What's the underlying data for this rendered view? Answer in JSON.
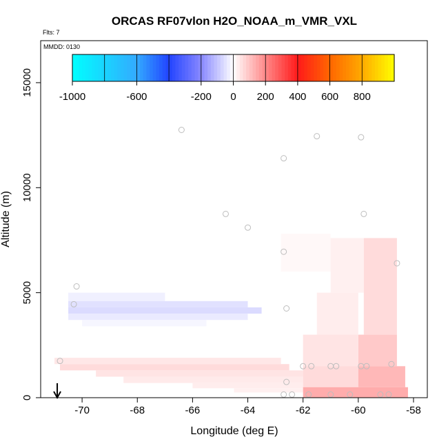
{
  "chart_data": {
    "type": "heatmap",
    "title": "ORCAS RF07vlon H2O_NOAA_m_VMR_VXL",
    "flights_note": "Flts: 7",
    "date_note": "MMDD: 0130",
    "xlabel": "Longitude (deg E)",
    "ylabel": "Altitude (m)",
    "xlim": [
      -71.5,
      -57.5
    ],
    "ylim": [
      0,
      17000
    ],
    "x_ticks": [
      -70,
      -68,
      -66,
      -64,
      -62,
      -60,
      -58
    ],
    "y_ticks": [
      0,
      5000,
      10000,
      15000
    ],
    "colorbar": {
      "range": [
        -1000,
        1000
      ],
      "tick_values": [
        -1000,
        -600,
        -200,
        0,
        200,
        400,
        600,
        800
      ],
      "tick_labels": [
        "-1000",
        "-600",
        "-200",
        "0",
        "200",
        "400",
        "600",
        "800"
      ],
      "stops": [
        {
          "v": -1000,
          "color": "#00ffff"
        },
        {
          "v": -600,
          "color": "#33aaff"
        },
        {
          "v": -400,
          "color": "#2244ff"
        },
        {
          "v": -200,
          "color": "#8888ff"
        },
        {
          "v": 0,
          "color": "#ffffff"
        },
        {
          "v": 200,
          "color": "#ff8888"
        },
        {
          "v": 400,
          "color": "#ff1a1a"
        },
        {
          "v": 600,
          "color": "#ff6600"
        },
        {
          "v": 800,
          "color": "#ffaa00"
        },
        {
          "v": 1000,
          "color": "#ffff00"
        }
      ]
    },
    "cells": [
      {
        "x0": -71.0,
        "x1": -62.8,
        "y0": 1600,
        "y1": 1900,
        "v": 40
      },
      {
        "x0": -70.8,
        "x1": -62.5,
        "y0": 1300,
        "y1": 1600,
        "v": 60
      },
      {
        "x0": -69.5,
        "x1": -62.0,
        "y0": 1000,
        "y1": 1300,
        "v": 45
      },
      {
        "x0": -68.5,
        "x1": -62.0,
        "y0": 700,
        "y1": 1000,
        "v": 35
      },
      {
        "x0": -66.0,
        "x1": -62.0,
        "y0": 450,
        "y1": 700,
        "v": 30
      },
      {
        "x0": -64.5,
        "x1": -62.0,
        "y0": 250,
        "y1": 450,
        "v": 25
      },
      {
        "x0": -70.5,
        "x1": -67.0,
        "y0": 4600,
        "y1": 5000,
        "v": -25
      },
      {
        "x0": -70.5,
        "x1": -64.0,
        "y0": 4300,
        "y1": 4600,
        "v": -50
      },
      {
        "x0": -70.5,
        "x1": -63.5,
        "y0": 4000,
        "y1": 4300,
        "v": -60
      },
      {
        "x0": -70.5,
        "x1": -64.0,
        "y0": 3700,
        "y1": 4000,
        "v": -35
      },
      {
        "x0": -70.0,
        "x1": -65.5,
        "y0": 3400,
        "y1": 3700,
        "v": -15
      },
      {
        "x0": -62.8,
        "x1": -61.0,
        "y0": 6000,
        "y1": 7800,
        "v": 12
      },
      {
        "x0": -61.0,
        "x1": -59.8,
        "y0": 5000,
        "y1": 7600,
        "v": 25
      },
      {
        "x0": -59.8,
        "x1": -58.6,
        "y0": 3000,
        "y1": 7600,
        "v": 60
      },
      {
        "x0": -61.5,
        "x1": -60.0,
        "y0": 3000,
        "y1": 5000,
        "v": 30
      },
      {
        "x0": -60.0,
        "x1": -58.6,
        "y0": 1500,
        "y1": 3000,
        "v": 90
      },
      {
        "x0": -62.0,
        "x1": -60.0,
        "y0": 1500,
        "y1": 3000,
        "v": 45
      },
      {
        "x0": -62.0,
        "x1": -60.0,
        "y0": 500,
        "y1": 1500,
        "v": 60
      },
      {
        "x0": -60.0,
        "x1": -58.3,
        "y0": 500,
        "y1": 1500,
        "v": 120
      },
      {
        "x0": -62.0,
        "x1": -58.2,
        "y0": 0,
        "y1": 500,
        "v": 140
      }
    ],
    "sample_points": [
      {
        "lon": -66.4,
        "alt": 12750
      },
      {
        "lon": -61.5,
        "alt": 12450
      },
      {
        "lon": -59.9,
        "alt": 12400
      },
      {
        "lon": -62.7,
        "alt": 11400
      },
      {
        "lon": -64.8,
        "alt": 8750
      },
      {
        "lon": -59.8,
        "alt": 8750
      },
      {
        "lon": -64.0,
        "alt": 8100
      },
      {
        "lon": -62.7,
        "alt": 6950
      },
      {
        "lon": -58.6,
        "alt": 6400
      },
      {
        "lon": -70.2,
        "alt": 5300
      },
      {
        "lon": -70.3,
        "alt": 4450
      },
      {
        "lon": -62.6,
        "alt": 4250
      },
      {
        "lon": -70.8,
        "alt": 1750
      },
      {
        "lon": -62.0,
        "alt": 1500
      },
      {
        "lon": -61.7,
        "alt": 1500
      },
      {
        "lon": -61.0,
        "alt": 1500
      },
      {
        "lon": -60.8,
        "alt": 1500
      },
      {
        "lon": -59.9,
        "alt": 1500
      },
      {
        "lon": -59.7,
        "alt": 1500
      },
      {
        "lon": -58.8,
        "alt": 1600
      },
      {
        "lon": -62.6,
        "alt": 750
      },
      {
        "lon": -62.7,
        "alt": 150
      },
      {
        "lon": -62.4,
        "alt": 150
      },
      {
        "lon": -61.8,
        "alt": 150
      },
      {
        "lon": -61.0,
        "alt": 150
      },
      {
        "lon": -60.3,
        "alt": 150
      },
      {
        "lon": -59.2,
        "alt": 150
      },
      {
        "lon": -58.9,
        "alt": 150
      }
    ],
    "arrow_lon": -70.9
  }
}
